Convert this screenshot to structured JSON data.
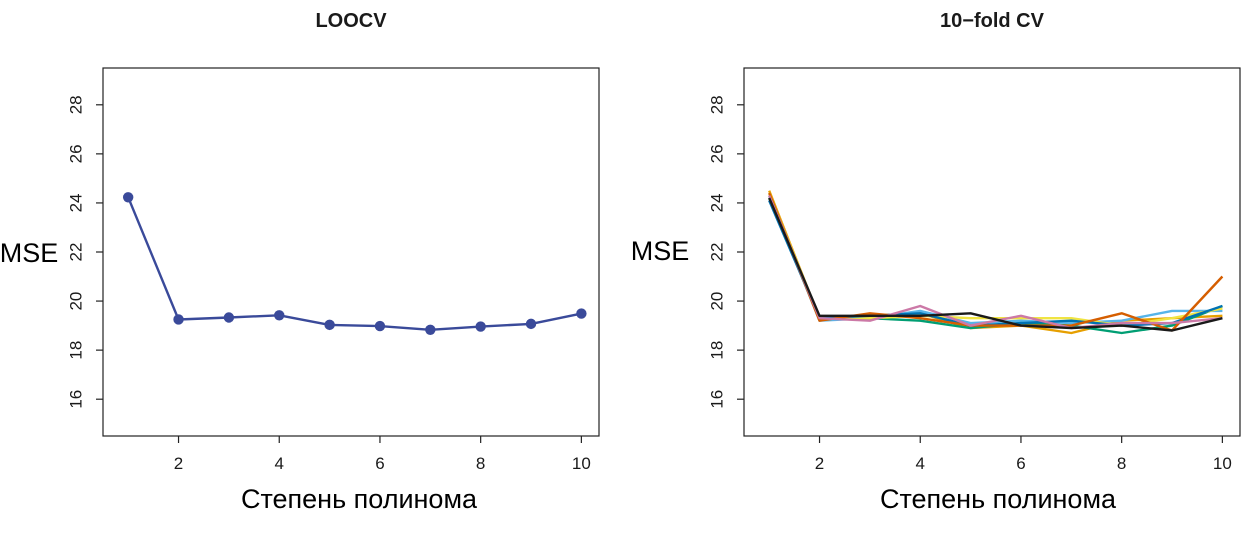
{
  "chart_data": [
    {
      "type": "line",
      "title": "LOOCV",
      "xlabel": "Степень полинома",
      "ylabel": "MSE",
      "xlim": [
        0.5,
        10.35
      ],
      "ylim": [
        14.5,
        29.5
      ],
      "xticks": [
        2,
        4,
        6,
        8,
        10
      ],
      "yticks": [
        16,
        18,
        20,
        22,
        24,
        26,
        28
      ],
      "markers": true,
      "grid": false,
      "x": [
        1,
        2,
        3,
        4,
        5,
        6,
        7,
        8,
        9,
        10
      ],
      "series": [
        {
          "color": "#3a4a9a",
          "values": [
            24.23,
            19.25,
            19.33,
            19.42,
            19.03,
            18.98,
            18.83,
            18.96,
            19.07,
            19.49
          ]
        }
      ]
    },
    {
      "type": "line",
      "title": "10−fold CV",
      "xlabel": "Степень полинома",
      "ylabel": "MSE",
      "xlim": [
        0.5,
        10.35
      ],
      "ylim": [
        14.5,
        29.5
      ],
      "xticks": [
        2,
        4,
        6,
        8,
        10
      ],
      "yticks": [
        16,
        18,
        20,
        22,
        24,
        26,
        28
      ],
      "markers": false,
      "grid": false,
      "x": [
        1,
        2,
        3,
        4,
        5,
        6,
        7,
        8,
        9,
        10
      ],
      "series": [
        {
          "color": "#e69f00",
          "values": [
            24.5,
            19.3,
            19.4,
            19.5,
            18.9,
            19.0,
            18.7,
            19.2,
            19.3,
            19.4
          ]
        },
        {
          "color": "#56b4e9",
          "values": [
            24.3,
            19.2,
            19.3,
            19.6,
            19.1,
            19.2,
            19.1,
            19.2,
            19.6,
            19.6
          ]
        },
        {
          "color": "#009e73",
          "values": [
            24.2,
            19.3,
            19.3,
            19.2,
            18.9,
            19.1,
            19.0,
            18.7,
            19.0,
            19.8
          ]
        },
        {
          "color": "#f0e442",
          "values": [
            24.4,
            19.3,
            19.3,
            19.4,
            19.3,
            19.3,
            19.3,
            19.0,
            19.3,
            19.7
          ]
        },
        {
          "color": "#0072b2",
          "values": [
            24.1,
            19.3,
            19.4,
            19.5,
            19.0,
            19.1,
            19.2,
            19.0,
            19.1,
            19.8
          ]
        },
        {
          "color": "#d55e00",
          "values": [
            24.4,
            19.2,
            19.5,
            19.3,
            19.0,
            19.0,
            19.0,
            19.5,
            18.8,
            21.0
          ]
        },
        {
          "color": "#cc79a7",
          "values": [
            24.3,
            19.3,
            19.2,
            19.8,
            19.0,
            19.4,
            18.9,
            19.1,
            19.1,
            19.3
          ]
        },
        {
          "color": "#1a1a1a",
          "values": [
            24.2,
            19.4,
            19.4,
            19.4,
            19.5,
            19.0,
            18.9,
            19.0,
            18.8,
            19.3
          ]
        }
      ]
    }
  ]
}
